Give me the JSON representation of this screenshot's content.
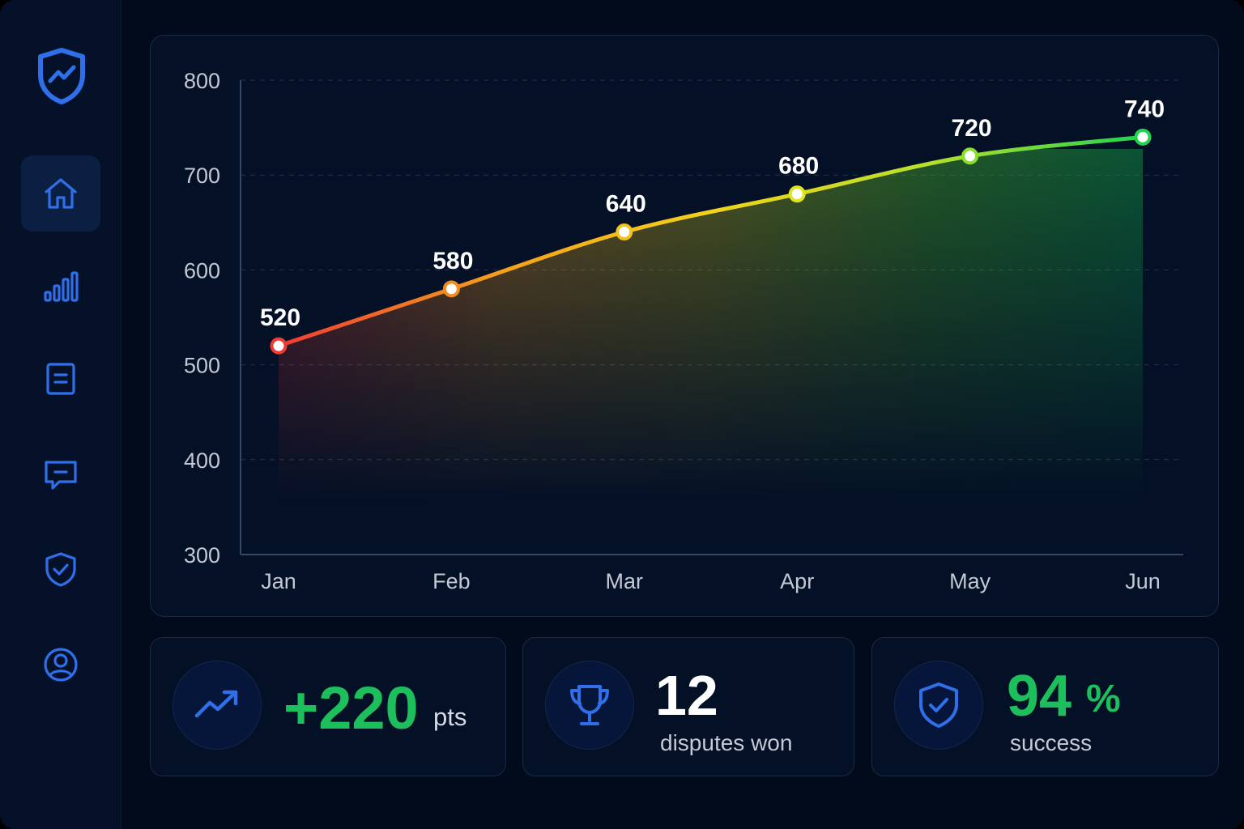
{
  "sidebar": {
    "logo_icon": "shield-chart-icon",
    "items": [
      {
        "name": "home",
        "icon": "home-icon",
        "active": true
      },
      {
        "name": "analytics",
        "icon": "bar-chart-icon",
        "active": false
      },
      {
        "name": "reports",
        "icon": "document-icon",
        "active": false
      },
      {
        "name": "messages",
        "icon": "chat-icon",
        "active": false
      },
      {
        "name": "security",
        "icon": "shield-check-icon",
        "active": false
      },
      {
        "name": "profile",
        "icon": "user-icon",
        "active": false
      }
    ]
  },
  "chart_data": {
    "type": "area",
    "categories": [
      "Jan",
      "Feb",
      "Mar",
      "Apr",
      "May",
      "Jun"
    ],
    "values": [
      520,
      580,
      640,
      680,
      720,
      740
    ],
    "data_labels": [
      "520",
      "580",
      "640",
      "680",
      "720",
      "740"
    ],
    "ylim": [
      300,
      800
    ],
    "yticks": [
      300,
      400,
      500,
      600,
      700,
      800
    ],
    "grid": true,
    "gradient_colors": [
      "#ef3b35",
      "#f59e1b",
      "#f2d21b",
      "#b8e02a",
      "#22d34f"
    ]
  },
  "stats": [
    {
      "icon": "trending-up-icon",
      "value": "+220",
      "unit": "pts",
      "value_color": "#1dbe5c"
    },
    {
      "icon": "trophy-icon",
      "value": "12",
      "label": "disputes won",
      "value_color": "#ffffff"
    },
    {
      "icon": "shield-check-icon",
      "value": "94",
      "unit": "%",
      "label": "success",
      "value_color": "#1dbe5c"
    }
  ],
  "colors": {
    "accent": "#2f6fe9",
    "positive": "#1dbe5c",
    "background": "#020b1c"
  }
}
